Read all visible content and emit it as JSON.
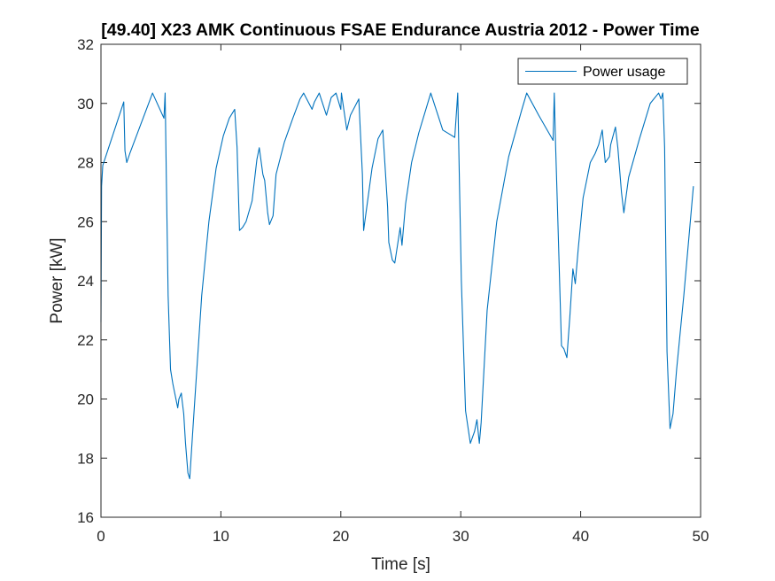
{
  "chart_data": {
    "type": "line",
    "title": "[49.40] X23 AMK Continuous  FSAE Endurance Austria 2012 - Power Time",
    "xlabel": "Time [s]",
    "ylabel": "Power [kW]",
    "xlim": [
      0,
      50
    ],
    "ylim": [
      16,
      32
    ],
    "xticks": [
      0,
      10,
      20,
      30,
      40,
      50
    ],
    "yticks": [
      16,
      18,
      20,
      22,
      24,
      26,
      28,
      30,
      32
    ],
    "xtick_labels": [
      "0",
      "10",
      "20",
      "30",
      "40",
      "50"
    ],
    "ytick_labels": [
      "16",
      "18",
      "20",
      "22",
      "24",
      "26",
      "28",
      "30",
      "32"
    ],
    "grid": false,
    "legend_position": "top-right",
    "series": [
      {
        "name": "Power usage",
        "color": "#0072BD",
        "x": [
          0,
          0.05,
          0.15,
          1.9,
          2.0,
          2.15,
          2.4,
          4.3,
          5.25,
          5.35,
          5.45,
          5.6,
          5.8,
          6.0,
          6.4,
          6.5,
          6.7,
          6.75,
          6.9,
          7.05,
          7.25,
          7.4,
          7.7,
          8.4,
          9.0,
          9.6,
          10.2,
          10.7,
          11.15,
          11.35,
          11.55,
          11.8,
          12.1,
          12.6,
          13.0,
          13.2,
          13.5,
          13.65,
          13.9,
          14.05,
          14.35,
          14.6,
          15.3,
          16.0,
          16.6,
          16.9,
          17.6,
          17.8,
          18.2,
          18.8,
          19.2,
          19.6,
          20.0,
          20.05,
          20.5,
          20.8,
          21.5,
          21.8,
          21.9,
          22.6,
          23.1,
          23.5,
          23.9,
          24.0,
          24.2,
          24.3,
          24.5,
          24.8,
          24.95,
          25.1,
          25.4,
          25.9,
          26.5,
          27.5,
          28.5,
          29.5,
          29.75,
          29.85,
          30.05,
          30.4,
          30.8,
          31.15,
          31.35,
          31.55,
          31.7,
          32.2,
          33.0,
          34.0,
          35.1,
          35.5,
          36.5,
          37.7,
          37.8,
          37.9,
          38.1,
          38.4,
          38.6,
          38.85,
          39.1,
          39.35,
          39.55,
          39.8,
          40.2,
          40.8,
          41.2,
          41.5,
          41.8,
          42.05,
          42.4,
          42.5,
          42.9,
          43.1,
          43.4,
          43.6,
          44.0,
          44.9,
          45.8,
          46.5,
          46.7,
          46.85,
          47.0,
          47.1,
          47.2,
          47.45,
          47.7,
          48.0,
          48.6,
          49.4
        ],
        "values": [
          22.6,
          27.2,
          27.9,
          30.05,
          28.4,
          28.0,
          28.3,
          30.35,
          29.5,
          30.35,
          27.5,
          23.5,
          21.0,
          20.5,
          19.7,
          20.0,
          20.2,
          20.0,
          19.5,
          18.5,
          17.5,
          17.3,
          19.2,
          23.5,
          26.0,
          27.8,
          28.9,
          29.5,
          29.8,
          28.5,
          25.7,
          25.8,
          26.0,
          26.7,
          28.1,
          28.5,
          27.6,
          27.4,
          26.3,
          25.9,
          26.2,
          27.6,
          28.7,
          29.5,
          30.15,
          30.35,
          29.8,
          30.05,
          30.35,
          29.6,
          30.2,
          30.35,
          29.8,
          30.35,
          29.1,
          29.6,
          30.15,
          27.6,
          25.7,
          27.8,
          28.8,
          29.1,
          26.5,
          25.3,
          24.9,
          24.7,
          24.6,
          25.4,
          25.8,
          25.2,
          26.6,
          28.0,
          29.0,
          30.35,
          29.1,
          28.85,
          30.35,
          28.2,
          24.0,
          19.6,
          18.5,
          18.9,
          19.3,
          18.5,
          19.2,
          23.0,
          26.0,
          28.2,
          29.8,
          30.35,
          29.6,
          28.75,
          30.35,
          28.7,
          26.0,
          21.8,
          21.7,
          21.4,
          22.8,
          24.4,
          23.9,
          25.1,
          26.8,
          28.0,
          28.3,
          28.6,
          29.1,
          28.0,
          28.2,
          28.6,
          29.2,
          28.5,
          27.0,
          26.3,
          27.5,
          28.8,
          30.0,
          30.35,
          30.15,
          30.35,
          28.5,
          25.0,
          21.6,
          19.0,
          19.5,
          21.0,
          23.5,
          27.2
        ]
      }
    ]
  }
}
